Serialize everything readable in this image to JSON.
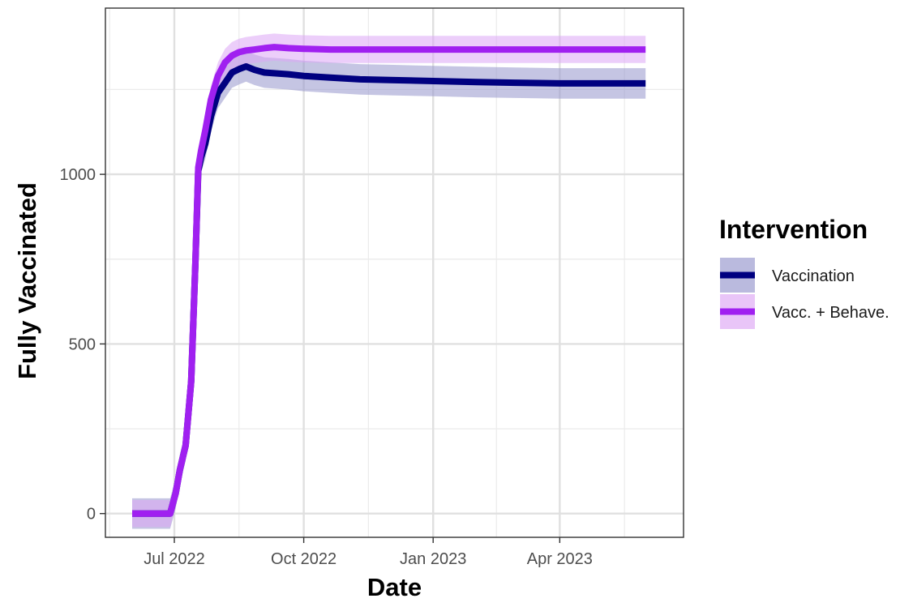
{
  "chart_data": {
    "type": "line",
    "title": "",
    "xlabel": "Date",
    "ylabel": "Fully Vaccinated",
    "x_ticks": [
      "Jul 2022",
      "Oct 2022",
      "Jan 2023",
      "Apr 2023"
    ],
    "x_tick_dates": [
      "2022-07-01",
      "2022-10-01",
      "2023-01-01",
      "2023-04-01"
    ],
    "y_ticks": [
      0,
      500,
      1000
    ],
    "xlim": [
      "2022-05-13",
      "2023-06-28"
    ],
    "ylim": [
      -70,
      1490
    ],
    "grid": true,
    "legend": {
      "title": "Intervention",
      "position": "right"
    },
    "x": [
      "2022-06-01",
      "2022-06-28",
      "2022-07-02",
      "2022-07-05",
      "2022-07-09",
      "2022-07-13",
      "2022-07-16",
      "2022-07-18",
      "2022-07-20",
      "2022-07-23",
      "2022-07-27",
      "2022-08-01",
      "2022-08-06",
      "2022-08-11",
      "2022-08-16",
      "2022-08-21",
      "2022-08-27",
      "2022-09-03",
      "2022-09-10",
      "2022-09-20",
      "2022-10-01",
      "2022-10-20",
      "2022-11-10",
      "2022-12-01",
      "2023-01-01",
      "2023-02-01",
      "2023-03-01",
      "2023-04-01",
      "2023-05-01",
      "2023-06-01"
    ],
    "series": [
      {
        "name": "Vaccination",
        "color": "#000080",
        "band_color": "#9595cc",
        "values": [
          0,
          0,
          60,
          130,
          200,
          390,
          740,
          1010,
          1050,
          1090,
          1170,
          1240,
          1270,
          1300,
          1310,
          1318,
          1308,
          1300,
          1298,
          1295,
          1290,
          1285,
          1280,
          1278,
          1275,
          1272,
          1270,
          1268,
          1268,
          1268
        ],
        "band": [
          45,
          45,
          45,
          45,
          45,
          45,
          45,
          45,
          45,
          45,
          45,
          45,
          45,
          45,
          45,
          45,
          45,
          45,
          45,
          45,
          45,
          45,
          45,
          45,
          45,
          45,
          45,
          45,
          45,
          45
        ]
      },
      {
        "name": "Vacc. + Behave.",
        "color": "#a020f0",
        "band_color": "#dda6f5",
        "values": [
          0,
          0,
          60,
          130,
          200,
          390,
          740,
          1020,
          1070,
          1130,
          1220,
          1290,
          1330,
          1350,
          1360,
          1365,
          1368,
          1372,
          1375,
          1372,
          1370,
          1368,
          1368,
          1368,
          1368,
          1368,
          1368,
          1368,
          1368,
          1368
        ],
        "band": [
          40,
          40,
          40,
          40,
          40,
          40,
          40,
          40,
          40,
          40,
          40,
          40,
          40,
          40,
          40,
          40,
          40,
          40,
          40,
          40,
          40,
          40,
          40,
          40,
          40,
          40,
          40,
          40,
          40,
          40
        ]
      }
    ]
  }
}
